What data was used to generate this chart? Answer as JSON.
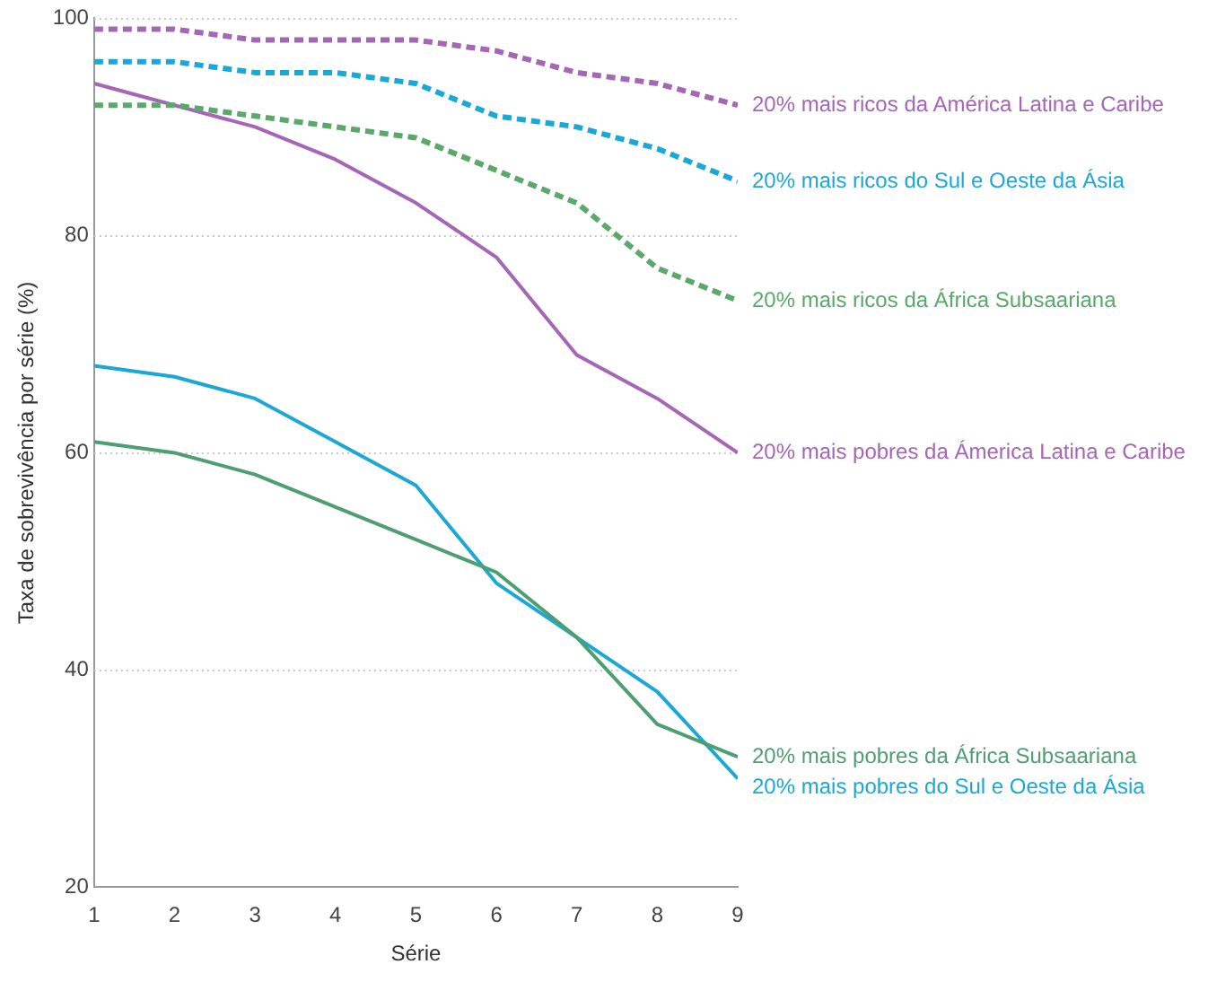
{
  "chart_data": {
    "type": "line",
    "xlabel": "Série",
    "ylabel": "Taxa de sobrevivência por série (%)",
    "x": [
      1,
      2,
      3,
      4,
      5,
      6,
      7,
      8,
      9
    ],
    "xlim": [
      1,
      9
    ],
    "xticks": [
      1,
      2,
      3,
      4,
      5,
      6,
      7,
      8,
      9
    ],
    "ylim": [
      20,
      100
    ],
    "yticks": [
      20,
      40,
      60,
      80,
      100
    ],
    "grid": "y",
    "legend": false,
    "marker": "none",
    "series": [
      {
        "name": "20% mais ricos da América Latina e Caribe",
        "color": "#a566b5",
        "line_style": "dashed",
        "values": [
          99,
          99,
          98,
          98,
          98,
          97,
          95,
          94,
          92
        ]
      },
      {
        "name": "20% mais ricos do Sul e Oeste da Ásia",
        "color": "#1ba8d6",
        "line_style": "dashed",
        "values": [
          96,
          96,
          95,
          95,
          94,
          91,
          90,
          88,
          85
        ]
      },
      {
        "name": "20% mais ricos da África Subsaariana",
        "color": "#5aa86a",
        "line_style": "dashed",
        "values": [
          92,
          92,
          91,
          90,
          89,
          86,
          83,
          77,
          74
        ]
      },
      {
        "name": "20% mais pobres da Ámerica Latina e Caribe",
        "color": "#a566b5",
        "line_style": "solid",
        "values": [
          94,
          92,
          90,
          87,
          83,
          78,
          69,
          65,
          60
        ]
      },
      {
        "name": "20% mais pobres da África Subsaariana",
        "color": "#4f9e72",
        "line_style": "solid",
        "values": [
          61,
          60,
          58,
          55,
          52,
          49,
          43,
          35,
          32
        ]
      },
      {
        "name": "20% mais pobres do Sul e Oeste da Ásia",
        "color": "#1ba8d6",
        "line_style": "solid",
        "values": [
          68,
          67,
          65,
          61,
          57,
          48,
          43,
          38,
          30
        ]
      }
    ]
  }
}
